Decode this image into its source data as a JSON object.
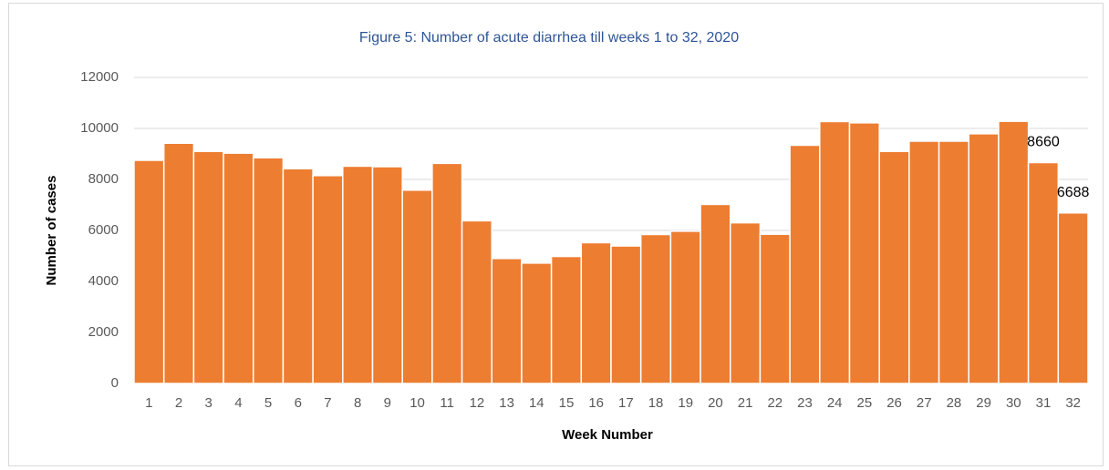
{
  "chart_data": {
    "type": "bar",
    "title": "Figure 5: Number of acute diarrhea till weeks 1 to 32, 2020",
    "x_label": "Week Number",
    "y_label": "Number of cases",
    "categories": [
      "1",
      "2",
      "3",
      "4",
      "5",
      "6",
      "7",
      "8",
      "9",
      "10",
      "11",
      "12",
      "13",
      "14",
      "15",
      "16",
      "17",
      "18",
      "19",
      "20",
      "21",
      "22",
      "23",
      "24",
      "25",
      "26",
      "27",
      "28",
      "29",
      "30",
      "31",
      "32"
    ],
    "values": [
      8750,
      9420,
      9100,
      9030,
      8850,
      8420,
      8150,
      8520,
      8500,
      7580,
      8630,
      6380,
      4900,
      4720,
      4980,
      5520,
      5390,
      5840,
      5970,
      7020,
      6300,
      5850,
      9340,
      10270,
      10220,
      9100,
      9500,
      9500,
      9790,
      10280,
      8660,
      6688
    ],
    "value_labels": [
      null,
      null,
      null,
      null,
      null,
      null,
      null,
      null,
      null,
      null,
      null,
      null,
      null,
      null,
      null,
      null,
      null,
      null,
      null,
      null,
      null,
      null,
      null,
      null,
      null,
      null,
      null,
      null,
      null,
      null,
      "8660",
      "6688"
    ],
    "color": "#ed7d31",
    "ylim": [
      0,
      12000
    ],
    "yticks": [
      0,
      2000,
      4000,
      6000,
      8000,
      10000,
      12000
    ],
    "grid": true
  }
}
